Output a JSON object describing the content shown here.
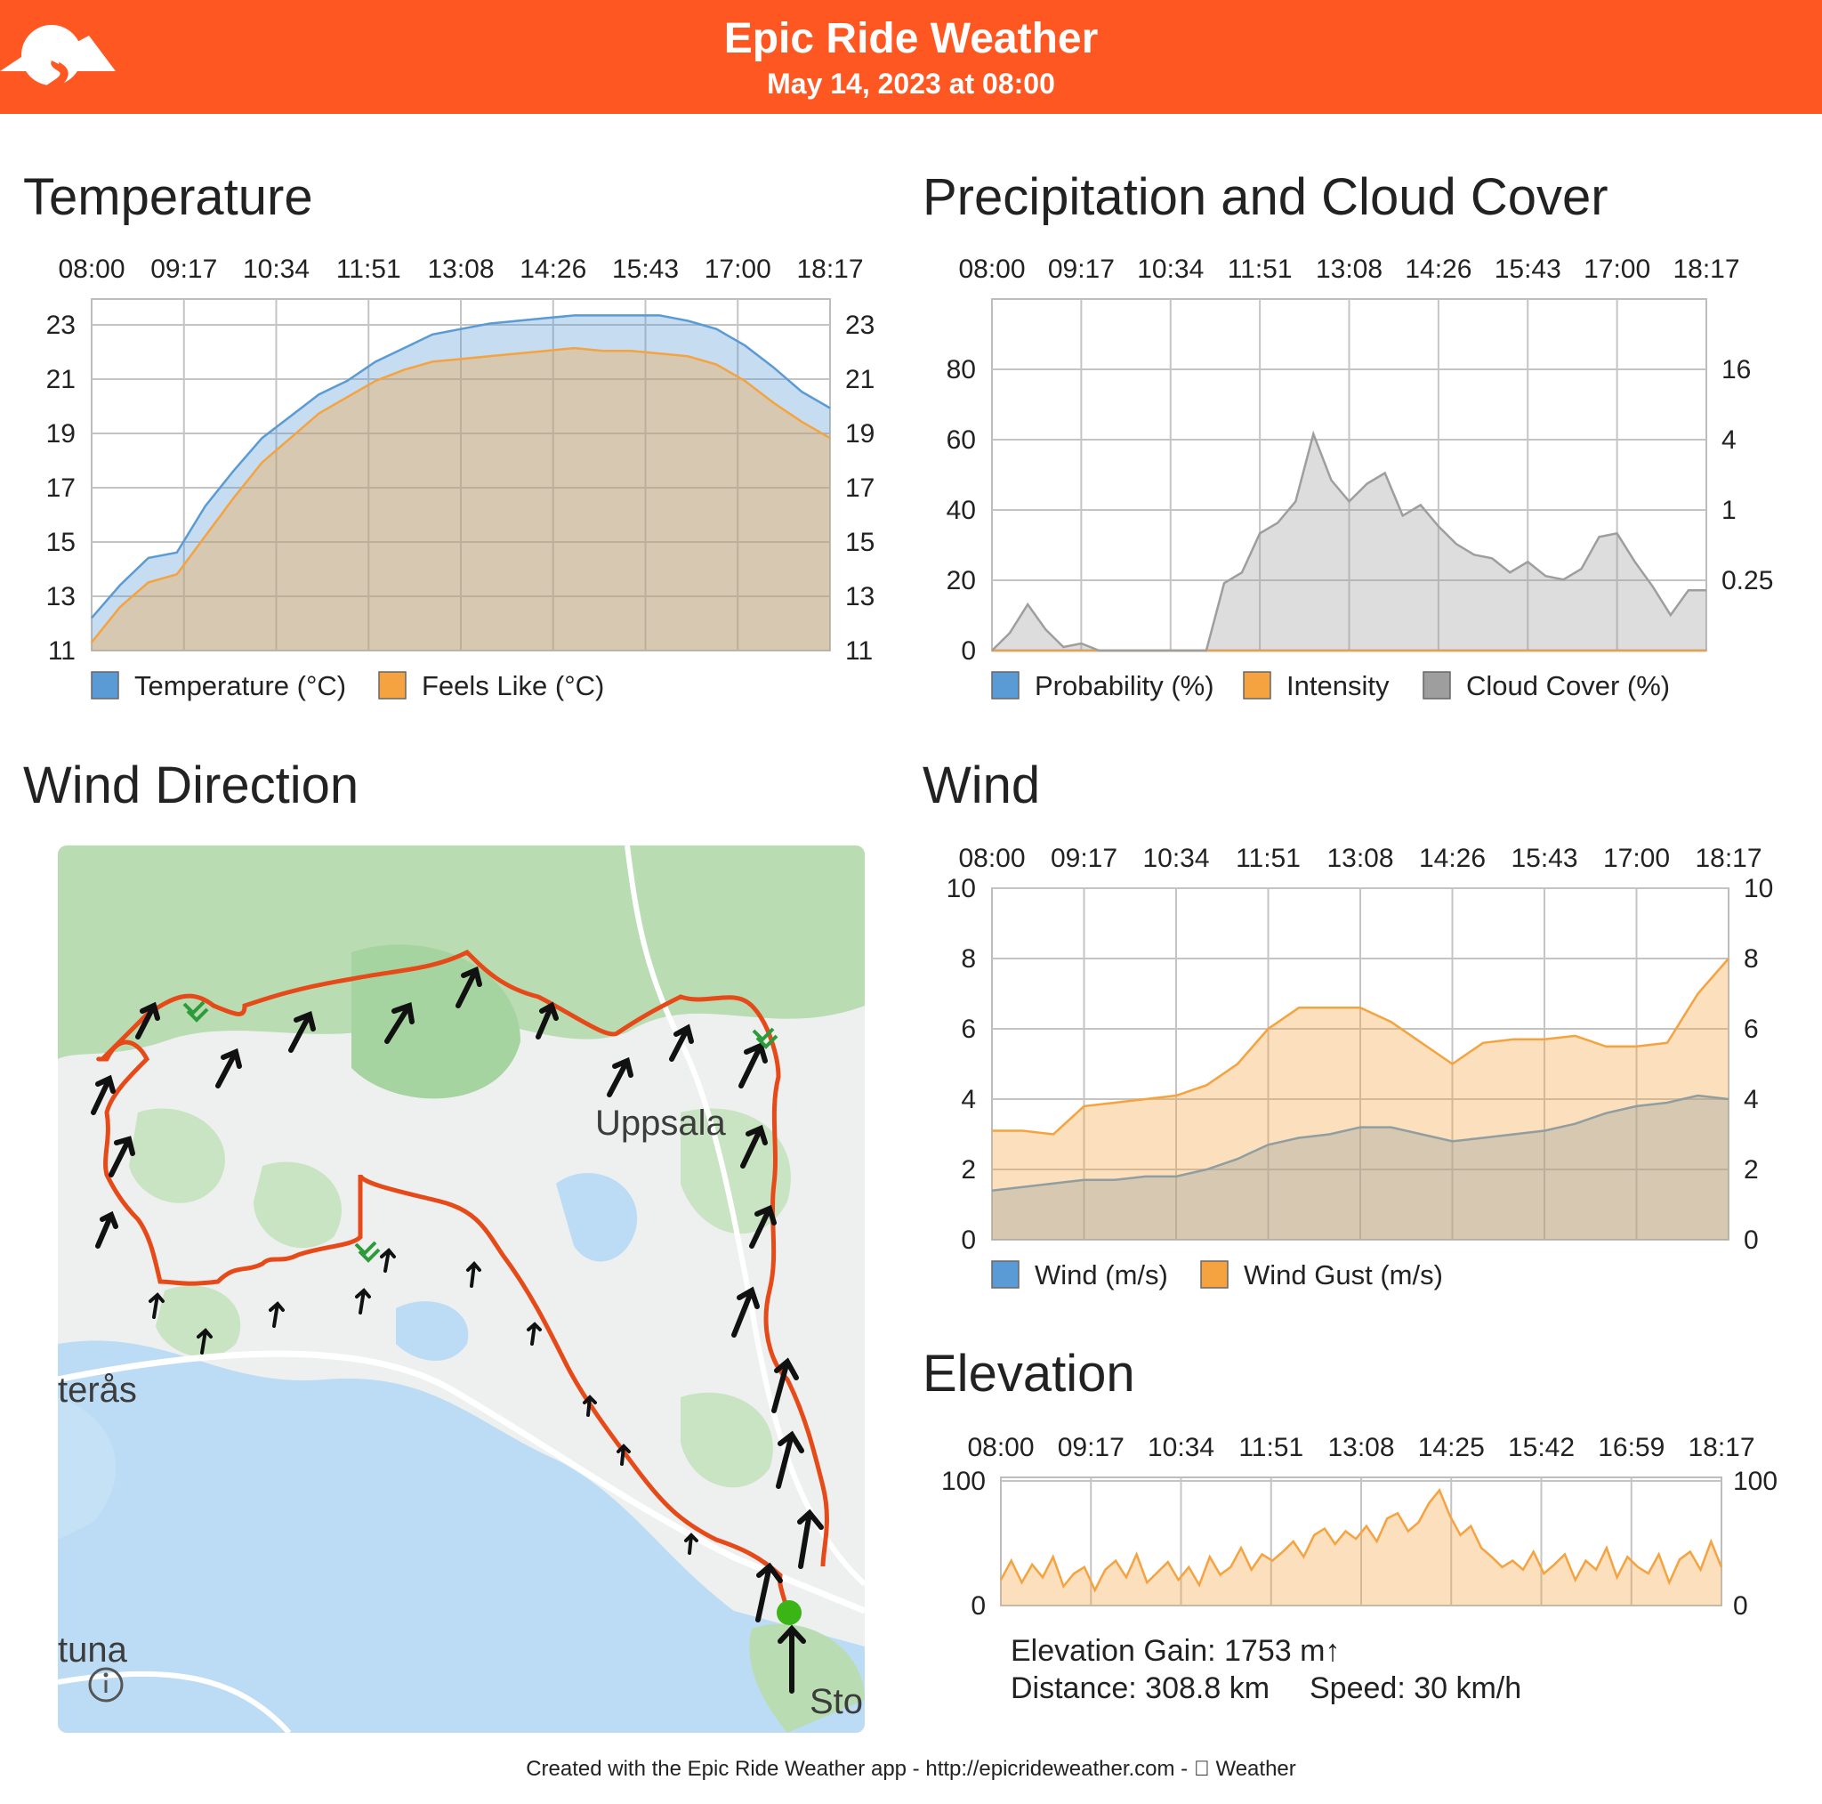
{
  "header": {
    "title": "Epic Ride Weather",
    "subtitle": "May 14, 2023 at 08:00"
  },
  "sections": {
    "temperature": "Temperature",
    "precipitation": "Precipitation and Cloud Cover",
    "wind_direction": "Wind Direction",
    "wind": "Wind",
    "elevation": "Elevation"
  },
  "map": {
    "labels": [
      "Uppsala",
      "terås",
      "tuna",
      "Sto"
    ],
    "info_icon": "info-icon"
  },
  "elevation_stats": {
    "gain": "Elevation Gain: 1753 m↑",
    "distance": "Distance: 308.8 km",
    "speed": "Speed: 30 km/h"
  },
  "footer": "Created with the Epic Ride Weather app - http://epicrideweather.com -  Weather",
  "colors": {
    "header": "#ff5722",
    "blue": "#5b9bd5",
    "orange": "#f5a340",
    "gray": "#9e9e9e",
    "route": "#e64a19"
  },
  "chart_data": [
    {
      "id": "temperature",
      "type": "area",
      "xticks": [
        "08:00",
        "09:17",
        "10:34",
        "11:51",
        "13:08",
        "14:26",
        "15:43",
        "17:00",
        "18:17"
      ],
      "yticks_left": [
        "11",
        "13",
        "15",
        "17",
        "19",
        "21",
        "23"
      ],
      "yticks_right": [
        "11",
        "13",
        "15",
        "17",
        "19",
        "21",
        "23"
      ],
      "ylim": [
        11,
        23.9
      ],
      "legend": [
        "Temperature (°C)",
        "Feels Like (°C)"
      ],
      "series": [
        {
          "name": "Temperature (°C)",
          "color": "#5b9bd5",
          "values": [
            12.2,
            13.4,
            14.4,
            14.6,
            16.3,
            17.6,
            18.8,
            19.6,
            20.4,
            20.9,
            21.6,
            22.1,
            22.6,
            22.8,
            23.0,
            23.1,
            23.2,
            23.3,
            23.3,
            23.3,
            23.3,
            23.1,
            22.8,
            22.2,
            21.4,
            20.5,
            19.9
          ]
        },
        {
          "name": "Feels Like (°C)",
          "color": "#f5a340",
          "values": [
            11.3,
            12.6,
            13.5,
            13.8,
            15.2,
            16.6,
            17.9,
            18.8,
            19.7,
            20.3,
            20.9,
            21.3,
            21.6,
            21.7,
            21.8,
            21.9,
            22.0,
            22.1,
            22.0,
            22.0,
            21.9,
            21.8,
            21.5,
            20.9,
            20.1,
            19.4,
            18.8
          ]
        }
      ]
    },
    {
      "id": "precipitation",
      "type": "area",
      "xticks": [
        "08:00",
        "09:17",
        "10:34",
        "11:51",
        "13:08",
        "14:26",
        "15:43",
        "17:00",
        "18:17"
      ],
      "yticks_left": [
        "0",
        "20",
        "40",
        "60",
        "80"
      ],
      "yticks_right": [
        "0.25",
        "1",
        "4",
        "16"
      ],
      "ylim": [
        0,
        99
      ],
      "legend": [
        "Probability (%)",
        "Intensity",
        "Cloud Cover (%)"
      ],
      "series": [
        {
          "name": "Probability (%)",
          "color": "#5b9bd5",
          "values": [
            0,
            0,
            0,
            0,
            0,
            0,
            0,
            0,
            0,
            0,
            0,
            0,
            0,
            0,
            0,
            0,
            0,
            0,
            0,
            0,
            0,
            0,
            0,
            0,
            0,
            0,
            0,
            0,
            0,
            0,
            0,
            0,
            0,
            0,
            0,
            0,
            0,
            0,
            0,
            0,
            0
          ]
        },
        {
          "name": "Intensity",
          "color": "#f5a340",
          "values": [
            0,
            0,
            0,
            0,
            0,
            0,
            0,
            0,
            0,
            0,
            0,
            0,
            0,
            0,
            0,
            0,
            0,
            0,
            0,
            0,
            0,
            0,
            0,
            0,
            0,
            0,
            0,
            0,
            0,
            0,
            0,
            0,
            0,
            0,
            0,
            0,
            0,
            0,
            0,
            0,
            0
          ]
        },
        {
          "name": "Cloud Cover (%)",
          "color": "#9e9e9e",
          "values": [
            0,
            5,
            13,
            6,
            1,
            2,
            0,
            0,
            0,
            0,
            0,
            0,
            0,
            19,
            22,
            33,
            36,
            42,
            61,
            48,
            42,
            47,
            50,
            38,
            41,
            35,
            30,
            27,
            26,
            22,
            25,
            21,
            20,
            23,
            32,
            33,
            25,
            18,
            10,
            17,
            17
          ]
        }
      ]
    },
    {
      "id": "wind",
      "type": "area",
      "xticks": [
        "08:00",
        "09:17",
        "10:34",
        "11:51",
        "13:08",
        "14:26",
        "15:43",
        "17:00",
        "18:17"
      ],
      "yticks_left": [
        "0",
        "2",
        "4",
        "6",
        "8",
        "10"
      ],
      "yticks_right": [
        "0",
        "2",
        "4",
        "6",
        "8",
        "10"
      ],
      "ylim": [
        0,
        10
      ],
      "legend": [
        "Wind (m/s)",
        "Wind Gust (m/s)"
      ],
      "series": [
        {
          "name": "Wind (m/s)",
          "color": "#5b9bd5",
          "values": [
            1.4,
            1.5,
            1.6,
            1.7,
            1.7,
            1.8,
            1.8,
            2.0,
            2.3,
            2.7,
            2.9,
            3.0,
            3.2,
            3.2,
            3.0,
            2.8,
            2.9,
            3.0,
            3.1,
            3.3,
            3.6,
            3.8,
            3.9,
            4.1,
            4.0
          ]
        },
        {
          "name": "Wind Gust (m/s)",
          "color": "#f5a340",
          "values": [
            3.1,
            3.1,
            3.0,
            3.8,
            3.9,
            4.0,
            4.1,
            4.4,
            5.0,
            6.0,
            6.6,
            6.6,
            6.6,
            6.2,
            5.6,
            5.0,
            5.6,
            5.7,
            5.7,
            5.8,
            5.5,
            5.5,
            5.6,
            7.0,
            8.0
          ]
        }
      ]
    },
    {
      "id": "elevation",
      "type": "area",
      "xticks": [
        "08:00",
        "09:17",
        "10:34",
        "11:51",
        "13:08",
        "14:25",
        "15:42",
        "16:59",
        "18:17"
      ],
      "yticks_left": [
        "0",
        "100"
      ],
      "yticks_right": [
        "0",
        "100"
      ],
      "ylim": [
        0,
        100
      ],
      "series": [
        {
          "name": "Elevation",
          "color": "#f5a340",
          "values": [
            20,
            35,
            18,
            32,
            22,
            38,
            15,
            25,
            30,
            12,
            28,
            35,
            22,
            40,
            18,
            26,
            34,
            20,
            30,
            16,
            38,
            24,
            30,
            45,
            28,
            40,
            35,
            42,
            50,
            38,
            55,
            60,
            48,
            58,
            52,
            62,
            50,
            68,
            72,
            58,
            65,
            80,
            90,
            70,
            55,
            62,
            45,
            38,
            30,
            35,
            28,
            42,
            25,
            32,
            40,
            20,
            35,
            28,
            45,
            22,
            38,
            30,
            25,
            40,
            18,
            36,
            42,
            28,
            50,
            30
          ]
        }
      ]
    }
  ]
}
